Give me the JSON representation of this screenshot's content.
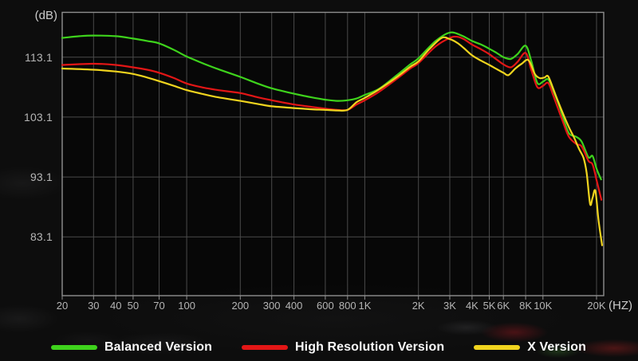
{
  "chart_data": {
    "type": "line",
    "title": "",
    "grid": true,
    "legend_position": "bottom",
    "x_axis": {
      "unit_label": "(HZ)",
      "scale": "log",
      "min_hz": 20,
      "max_hz": 20000,
      "ticks": [
        {
          "label": "20",
          "hz": 20
        },
        {
          "label": "30",
          "hz": 30
        },
        {
          "label": "40",
          "hz": 40
        },
        {
          "label": "50",
          "hz": 50
        },
        {
          "label": "70",
          "hz": 70
        },
        {
          "label": "100",
          "hz": 100
        },
        {
          "label": "200",
          "hz": 200
        },
        {
          "label": "300",
          "hz": 300
        },
        {
          "label": "400",
          "hz": 400
        },
        {
          "label": "600",
          "hz": 600
        },
        {
          "label": "800",
          "hz": 800
        },
        {
          "label": "1K",
          "hz": 1000
        },
        {
          "label": "2K",
          "hz": 2000
        },
        {
          "label": "3K",
          "hz": 3000
        },
        {
          "label": "4K",
          "hz": 4000
        },
        {
          "label": "5K",
          "hz": 5000
        },
        {
          "label": "6K",
          "hz": 6000
        },
        {
          "label": "8K",
          "hz": 8000
        },
        {
          "label": "10K",
          "hz": 10000
        },
        {
          "label": "20K",
          "hz": 20000
        }
      ]
    },
    "y_axis": {
      "unit_label": "(dB)",
      "top_db": 120.5,
      "bottom_db": 73.3,
      "ticks": [
        {
          "label": "113.1",
          "db": 113.1
        },
        {
          "label": "103.1",
          "db": 103.1
        },
        {
          "label": "93.1",
          "db": 93.1
        },
        {
          "label": "83.1",
          "db": 83.1
        }
      ]
    },
    "colors": {
      "balanced": "#3ed31c",
      "high_resolution": "#e31616",
      "x_version": "#f0d41e"
    },
    "series": [
      {
        "name": "Balanced Version",
        "color": "#3ed31c",
        "points": [
          [
            20,
            116.3
          ],
          [
            25,
            116.6
          ],
          [
            30,
            116.7
          ],
          [
            40,
            116.6
          ],
          [
            50,
            116.2
          ],
          [
            60,
            115.8
          ],
          [
            70,
            115.4
          ],
          [
            85,
            114.3
          ],
          [
            100,
            113.2
          ],
          [
            125,
            112.0
          ],
          [
            150,
            111.1
          ],
          [
            200,
            109.8
          ],
          [
            250,
            108.7
          ],
          [
            300,
            107.9
          ],
          [
            400,
            107.0
          ],
          [
            500,
            106.4
          ],
          [
            600,
            106.0
          ],
          [
            700,
            105.8
          ],
          [
            800,
            105.9
          ],
          [
            900,
            106.2
          ],
          [
            1000,
            106.8
          ],
          [
            1200,
            107.8
          ],
          [
            1500,
            110.0
          ],
          [
            1800,
            111.9
          ],
          [
            2000,
            112.9
          ],
          [
            2500,
            115.8
          ],
          [
            3000,
            117.2
          ],
          [
            3500,
            116.7
          ],
          [
            4000,
            115.8
          ],
          [
            4500,
            115.2
          ],
          [
            5000,
            114.5
          ],
          [
            5500,
            113.8
          ],
          [
            6000,
            113.1
          ],
          [
            6600,
            112.8
          ],
          [
            7200,
            113.6
          ],
          [
            8000,
            115.0
          ],
          [
            8600,
            112.5
          ],
          [
            9300,
            108.8
          ],
          [
            10000,
            109.0
          ],
          [
            10700,
            109.4
          ],
          [
            11400,
            107.6
          ],
          [
            12200,
            105.4
          ],
          [
            13000,
            103.0
          ],
          [
            14000,
            100.4
          ],
          [
            15400,
            99.8
          ],
          [
            16500,
            99.0
          ],
          [
            18000,
            96.4
          ],
          [
            19000,
            96.6
          ],
          [
            20000,
            94.5
          ],
          [
            21200,
            92.7
          ]
        ]
      },
      {
        "name": "High Resolution Version",
        "color": "#e31616",
        "points": [
          [
            20,
            111.8
          ],
          [
            30,
            112.0
          ],
          [
            40,
            111.8
          ],
          [
            50,
            111.4
          ],
          [
            60,
            111.0
          ],
          [
            70,
            110.5
          ],
          [
            85,
            109.6
          ],
          [
            100,
            108.7
          ],
          [
            125,
            108.0
          ],
          [
            150,
            107.6
          ],
          [
            200,
            107.1
          ],
          [
            250,
            106.4
          ],
          [
            300,
            105.9
          ],
          [
            400,
            105.2
          ],
          [
            500,
            104.8
          ],
          [
            600,
            104.5
          ],
          [
            700,
            104.3
          ],
          [
            800,
            104.3
          ],
          [
            900,
            105.2
          ],
          [
            1000,
            105.9
          ],
          [
            1200,
            107.3
          ],
          [
            1500,
            109.4
          ],
          [
            1800,
            111.2
          ],
          [
            2000,
            112.1
          ],
          [
            2500,
            114.9
          ],
          [
            3000,
            116.3
          ],
          [
            3300,
            116.5
          ],
          [
            3600,
            116.1
          ],
          [
            4000,
            115.2
          ],
          [
            4500,
            114.4
          ],
          [
            5000,
            113.6
          ],
          [
            5500,
            112.7
          ],
          [
            6000,
            111.9
          ],
          [
            6600,
            111.4
          ],
          [
            7200,
            112.3
          ],
          [
            8000,
            113.8
          ],
          [
            8600,
            111.0
          ],
          [
            9300,
            108.1
          ],
          [
            10000,
            108.3
          ],
          [
            10700,
            108.8
          ],
          [
            11400,
            106.8
          ],
          [
            12200,
            104.4
          ],
          [
            13000,
            102.2
          ],
          [
            14000,
            99.8
          ],
          [
            15400,
            98.6
          ],
          [
            16500,
            98.2
          ],
          [
            18000,
            95.8
          ],
          [
            19000,
            95.2
          ],
          [
            20000,
            92.6
          ],
          [
            21300,
            89.3
          ]
        ]
      },
      {
        "name": "X Version",
        "color": "#f0d41e",
        "points": [
          [
            20,
            111.2
          ],
          [
            30,
            111.0
          ],
          [
            40,
            110.7
          ],
          [
            50,
            110.3
          ],
          [
            60,
            109.7
          ],
          [
            70,
            109.1
          ],
          [
            85,
            108.3
          ],
          [
            100,
            107.6
          ],
          [
            125,
            106.9
          ],
          [
            150,
            106.4
          ],
          [
            200,
            105.8
          ],
          [
            250,
            105.3
          ],
          [
            300,
            104.9
          ],
          [
            400,
            104.6
          ],
          [
            500,
            104.4
          ],
          [
            600,
            104.3
          ],
          [
            700,
            104.2
          ],
          [
            800,
            104.3
          ],
          [
            900,
            105.6
          ],
          [
            1000,
            106.3
          ],
          [
            1200,
            107.7
          ],
          [
            1500,
            109.7
          ],
          [
            1800,
            111.5
          ],
          [
            2000,
            112.4
          ],
          [
            2300,
            114.4
          ],
          [
            2700,
            116.3
          ],
          [
            3000,
            116.1
          ],
          [
            3300,
            115.5
          ],
          [
            3600,
            114.6
          ],
          [
            4000,
            113.4
          ],
          [
            4500,
            112.5
          ],
          [
            5000,
            111.8
          ],
          [
            5500,
            111.1
          ],
          [
            6000,
            110.5
          ],
          [
            6400,
            110.1
          ],
          [
            7000,
            111.2
          ],
          [
            7600,
            112.0
          ],
          [
            8300,
            112.6
          ],
          [
            9000,
            110.3
          ],
          [
            9600,
            109.6
          ],
          [
            10200,
            109.7
          ],
          [
            10700,
            109.9
          ],
          [
            11400,
            107.9
          ],
          [
            12200,
            105.6
          ],
          [
            13000,
            103.6
          ],
          [
            14000,
            101.4
          ],
          [
            15000,
            99.6
          ],
          [
            16000,
            97.7
          ],
          [
            16900,
            96.3
          ],
          [
            17600,
            93.8
          ],
          [
            18400,
            88.6
          ],
          [
            19000,
            89.6
          ],
          [
            19700,
            90.8
          ],
          [
            20500,
            86.0
          ],
          [
            21500,
            81.7
          ]
        ]
      }
    ]
  }
}
